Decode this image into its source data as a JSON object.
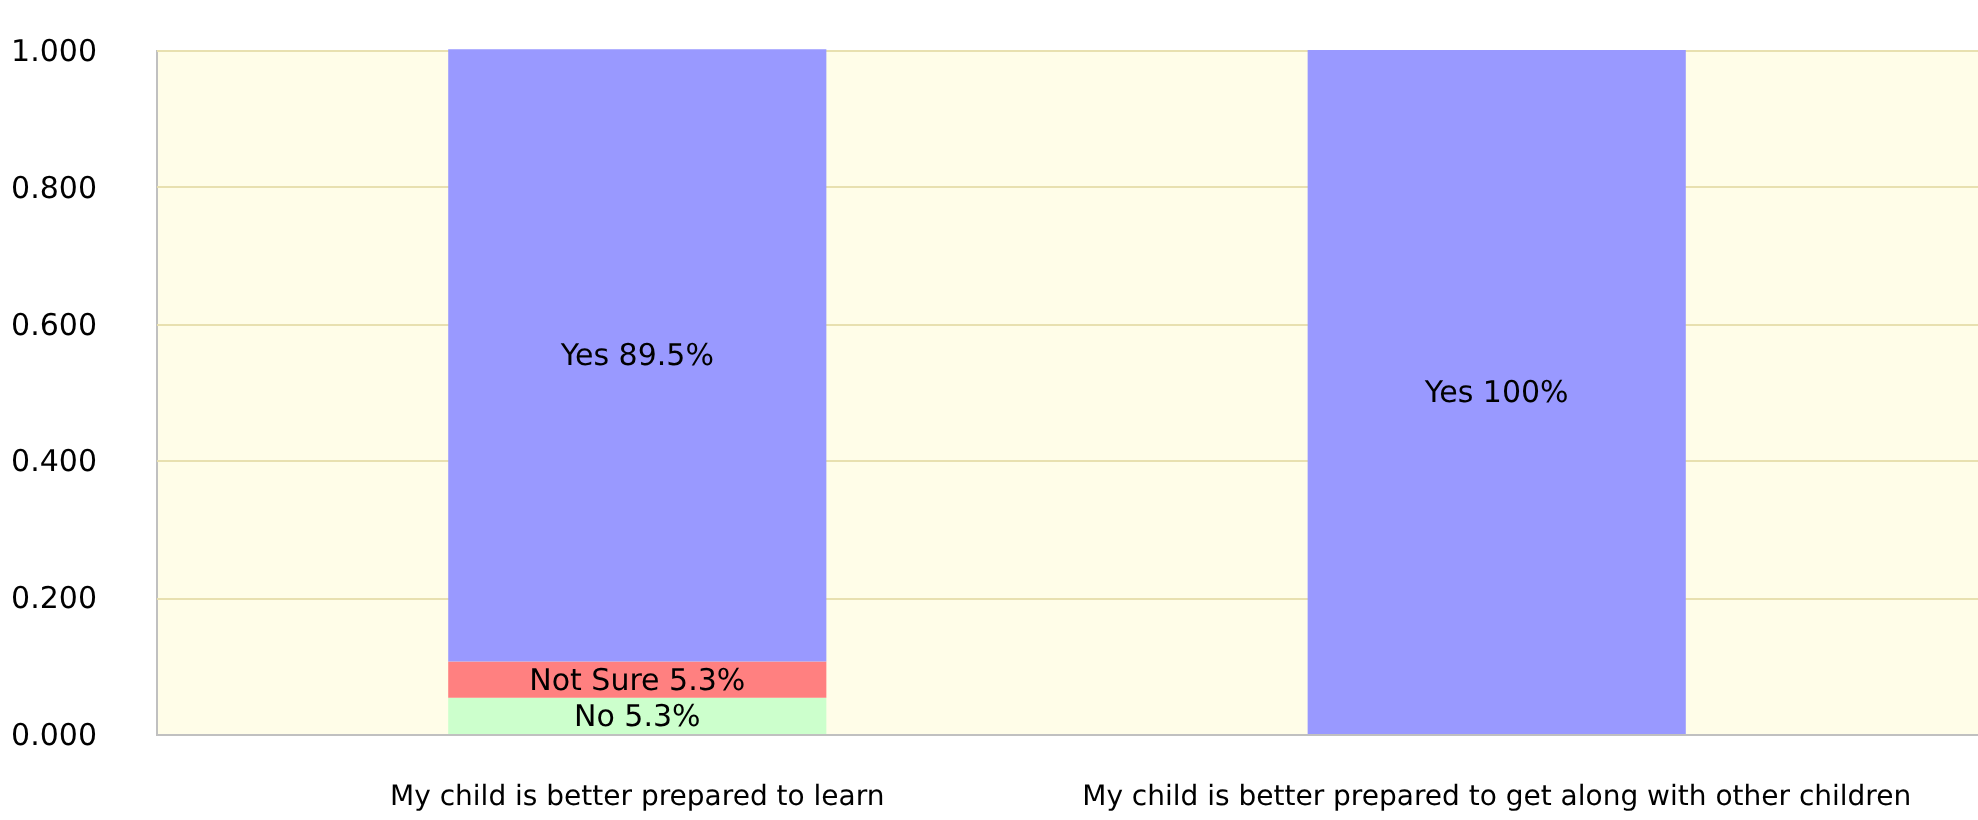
{
  "chart_data": {
    "type": "bar",
    "stacked": true,
    "categories": [
      "My child is better prepared to learn",
      "My child is better prepared to get along with other children"
    ],
    "series": [
      {
        "color": "#ccffcc",
        "values": [
          0.053,
          0
        ],
        "value_labels": [
          "No 5.3%",
          null
        ]
      },
      {
        "color": "#ff8080",
        "values": [
          0.053,
          0
        ],
        "value_labels": [
          "Not Sure 5.3%",
          null
        ]
      },
      {
        "color": "#9999ff",
        "values": [
          0.895,
          1.0
        ],
        "value_labels": [
          "Yes 89.5%",
          "Yes 100%"
        ]
      }
    ],
    "ylim": [
      0,
      1
    ],
    "yticks": [
      {
        "value": 0,
        "label": "0.000"
      },
      {
        "value": 0.2,
        "label": "0.200"
      },
      {
        "value": 0.4,
        "label": "0.400"
      },
      {
        "value": 0.6,
        "label": "0.600"
      },
      {
        "value": 0.8,
        "label": "0.800"
      },
      {
        "value": 1,
        "label": "1.000"
      }
    ],
    "grid": "y"
  }
}
